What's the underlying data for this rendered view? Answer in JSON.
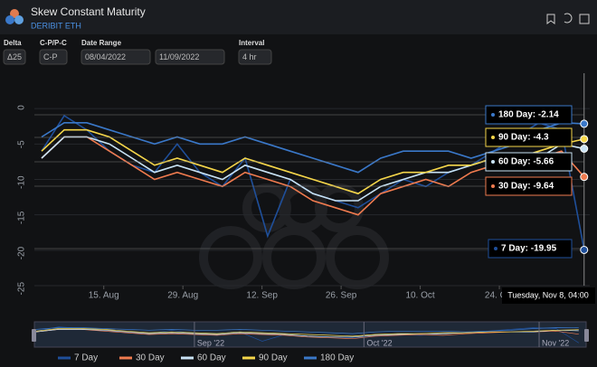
{
  "header": {
    "title": "Skew Constant Maturity",
    "subtitle": "DERIBIT ETH"
  },
  "controls": [
    {
      "label": "Delta",
      "fields": [
        "Δ25"
      ]
    },
    {
      "label": "C-P/P-C",
      "fields": [
        "C-P"
      ]
    },
    {
      "label": "Date Range",
      "fields": [
        "08/04/2022",
        "11/09/2022"
      ]
    },
    {
      "label": "Interval",
      "fields": [
        "4 hr"
      ]
    }
  ],
  "chart_data": {
    "type": "line",
    "x": [
      "2022-08-04",
      "2022-08-08",
      "2022-08-12",
      "2022-08-16",
      "2022-08-20",
      "2022-08-24",
      "2022-08-28",
      "2022-09-01",
      "2022-09-05",
      "2022-09-09",
      "2022-09-13",
      "2022-09-17",
      "2022-09-21",
      "2022-09-25",
      "2022-09-29",
      "2022-10-03",
      "2022-10-07",
      "2022-10-11",
      "2022-10-15",
      "2022-10-19",
      "2022-10-23",
      "2022-10-27",
      "2022-10-31",
      "2022-11-04",
      "2022-11-08"
    ],
    "series": [
      {
        "name": "7 Day",
        "color": "#1f4f9a",
        "values": [
          -6,
          -1,
          -3,
          -6,
          -8,
          -9,
          -5,
          -9,
          -11,
          -7,
          -18,
          -10,
          -12,
          -13,
          -14,
          -12,
          -10,
          -11,
          -9,
          -8,
          -6,
          -4,
          -2,
          -3,
          -19.95
        ]
      },
      {
        "name": "30 Day",
        "color": "#f07b4f",
        "values": [
          -7,
          -4,
          -4,
          -6,
          -8,
          -10,
          -9,
          -10,
          -11,
          -9,
          -10,
          -11,
          -13,
          -14,
          -15,
          -12,
          -11,
          -10,
          -11,
          -9,
          -8,
          -7,
          -7,
          -6,
          -9.64
        ]
      },
      {
        "name": "60 Day",
        "color": "#c9e3f5",
        "values": [
          -7,
          -4,
          -4,
          -5,
          -7,
          -9,
          -8,
          -9,
          -10,
          -8,
          -9,
          -10,
          -12,
          -13,
          -13,
          -11,
          -10,
          -9,
          -9,
          -8,
          -7,
          -7,
          -7,
          -5,
          -5.66
        ]
      },
      {
        "name": "90 Day",
        "color": "#f5d64a",
        "values": [
          -6,
          -3,
          -3,
          -4,
          -6,
          -8,
          -7,
          -8,
          -9,
          -7,
          -8,
          -9,
          -10,
          -11,
          -12,
          -10,
          -9,
          -9,
          -8,
          -8,
          -7,
          -7,
          -6,
          -5,
          -4.3
        ]
      },
      {
        "name": "180 Day",
        "color": "#3a78c9",
        "values": [
          -4,
          -2,
          -2,
          -3,
          -4,
          -5,
          -4,
          -5,
          -5,
          -4,
          -5,
          -6,
          -7,
          -8,
          -9,
          -7,
          -6,
          -6,
          -6,
          -7,
          -6,
          -5,
          -3,
          -2,
          -2.14
        ]
      }
    ],
    "xlim": [
      "2022-08-04",
      "2022-11-09"
    ],
    "xticks": [
      {
        "value": "2022-08-15",
        "label": "15. Aug"
      },
      {
        "value": "2022-08-29",
        "label": "29. Aug"
      },
      {
        "value": "2022-09-12",
        "label": "12. Sep"
      },
      {
        "value": "2022-09-26",
        "label": "26. Sep"
      },
      {
        "value": "2022-10-10",
        "label": "10. Oct"
      },
      {
        "value": "2022-10-24",
        "label": "24. Oct"
      }
    ],
    "ylim": [
      -25,
      5
    ],
    "yticks": [
      0,
      -5,
      -10,
      -15,
      -20,
      -25
    ],
    "navigator_ticks": [
      {
        "value": "2022-09-01",
        "label": "Sep '22"
      },
      {
        "value": "2022-10-01",
        "label": "Oct '22"
      },
      {
        "value": "2022-11-01",
        "label": "Nov '22"
      }
    ],
    "tooltip": {
      "date": "Tuesday, Nov 8, 04:00",
      "items": [
        "180 Day: -2.14",
        "90 Day: -4.3",
        "60 Day: -5.66",
        "30 Day: -9.64",
        "7 Day: -19.95"
      ]
    }
  }
}
